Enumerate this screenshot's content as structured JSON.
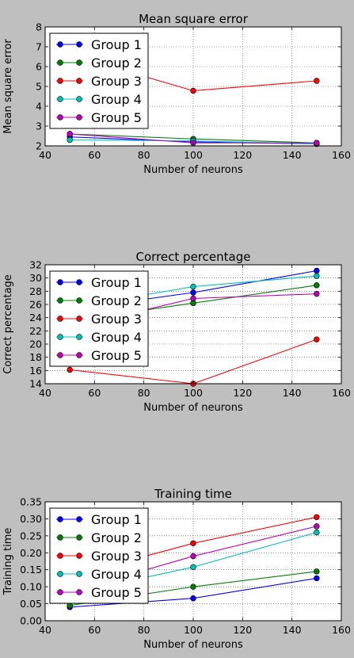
{
  "chart_data": [
    {
      "type": "line",
      "title": "Mean square error",
      "xlabel": "Number of neurons",
      "ylabel": "Mean square error",
      "xlim": [
        40,
        160
      ],
      "ylim": [
        2,
        8
      ],
      "xticks": [
        40,
        60,
        80,
        100,
        120,
        140,
        160
      ],
      "yticks": [
        2,
        3,
        4,
        5,
        6,
        7,
        8
      ],
      "ytick_labels": [
        "2",
        "3",
        "4",
        "5",
        "6",
        "7",
        "8"
      ],
      "grid": true,
      "legend": "upper-left",
      "x": [
        50,
        100,
        150
      ],
      "series": [
        {
          "name": "Group 1",
          "color": "#0000ff",
          "values": [
            2.45,
            2.2,
            2.1
          ]
        },
        {
          "name": "Group 2",
          "color": "#008000",
          "values": [
            2.6,
            2.35,
            2.15
          ]
        },
        {
          "name": "Group 3",
          "color": "#ff0000",
          "values": [
            6.6,
            4.78,
            5.28
          ]
        },
        {
          "name": "Group 4",
          "color": "#00bfbf",
          "values": [
            2.3,
            2.25,
            2.1
          ]
        },
        {
          "name": "Group 5",
          "color": "#bf00bf",
          "values": [
            2.6,
            2.15,
            2.15
          ]
        }
      ]
    },
    {
      "type": "line",
      "title": "Correct percentage",
      "xlabel": "Number of neurons",
      "ylabel": "Correct percentage",
      "xlim": [
        40,
        160
      ],
      "ylim": [
        14,
        32
      ],
      "xticks": [
        40,
        60,
        80,
        100,
        120,
        140,
        160
      ],
      "yticks": [
        14,
        16,
        18,
        20,
        22,
        24,
        26,
        28,
        30,
        32
      ],
      "ytick_labels": [
        "14",
        "16",
        "18",
        "20",
        "22",
        "24",
        "26",
        "28",
        "30",
        "32"
      ],
      "grid": true,
      "legend": "upper-left",
      "x": [
        50,
        100,
        150
      ],
      "series": [
        {
          "name": "Group 1",
          "color": "#0000ff",
          "values": [
            25.2,
            27.8,
            31.1
          ]
        },
        {
          "name": "Group 2",
          "color": "#008000",
          "values": [
            23.5,
            26.2,
            28.9
          ]
        },
        {
          "name": "Group 3",
          "color": "#ff0000",
          "values": [
            16.1,
            14.0,
            20.7
          ]
        },
        {
          "name": "Group 4",
          "color": "#00bfbf",
          "values": [
            25.5,
            28.7,
            30.3
          ]
        },
        {
          "name": "Group 5",
          "color": "#bf00bf",
          "values": [
            22.5,
            26.9,
            27.6
          ]
        }
      ]
    },
    {
      "type": "line",
      "title": "Training time",
      "xlabel": "Number of neurons",
      "ylabel": "Training time",
      "xlim": [
        40,
        160
      ],
      "ylim": [
        0.0,
        0.35
      ],
      "xticks": [
        40,
        60,
        80,
        100,
        120,
        140,
        160
      ],
      "yticks": [
        0.0,
        0.05,
        0.1,
        0.15,
        0.2,
        0.25,
        0.3,
        0.35
      ],
      "ytick_labels": [
        "0.00",
        "0.05",
        "0.10",
        "0.15",
        "0.20",
        "0.25",
        "0.30",
        "0.35"
      ],
      "grid": true,
      "legend": "upper-left",
      "x": [
        50,
        100,
        150
      ],
      "series": [
        {
          "name": "Group 1",
          "color": "#0000ff",
          "values": [
            0.04,
            0.066,
            0.125
          ]
        },
        {
          "name": "Group 2",
          "color": "#008000",
          "values": [
            0.045,
            0.1,
            0.145
          ]
        },
        {
          "name": "Group 3",
          "color": "#ff0000",
          "values": [
            0.13,
            0.228,
            0.305
          ]
        },
        {
          "name": "Group 4",
          "color": "#00bfbf",
          "values": [
            0.08,
            0.158,
            0.26
          ]
        },
        {
          "name": "Group 5",
          "color": "#bf00bf",
          "values": [
            0.085,
            0.19,
            0.278
          ]
        }
      ]
    }
  ]
}
